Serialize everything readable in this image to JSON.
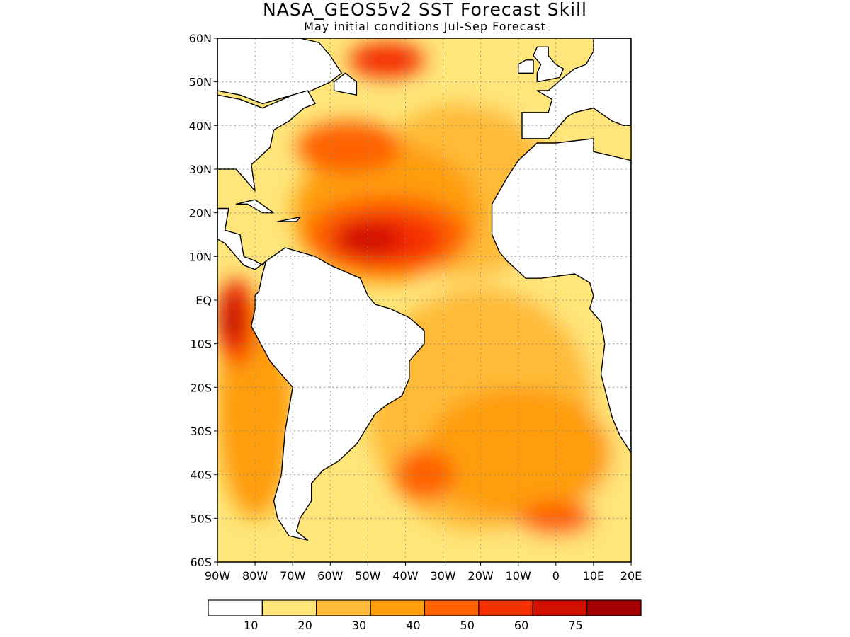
{
  "title": "NASA_GEOS5v2 SST Forecast Skill",
  "subtitle": "May initial conditions  Jul-Sep Forecast",
  "map": {
    "lon_range": [
      -90,
      20
    ],
    "lat_range": [
      -60,
      60
    ],
    "lat_ticks": [
      {
        "value": 60,
        "label": "60N"
      },
      {
        "value": 50,
        "label": "50N"
      },
      {
        "value": 40,
        "label": "40N"
      },
      {
        "value": 30,
        "label": "30N"
      },
      {
        "value": 20,
        "label": "20N"
      },
      {
        "value": 10,
        "label": "10N"
      },
      {
        "value": 0,
        "label": "EQ"
      },
      {
        "value": -10,
        "label": "10S"
      },
      {
        "value": -20,
        "label": "20S"
      },
      {
        "value": -30,
        "label": "30S"
      },
      {
        "value": -40,
        "label": "40S"
      },
      {
        "value": -50,
        "label": "50S"
      },
      {
        "value": -60,
        "label": "60S"
      }
    ],
    "lon_ticks": [
      {
        "value": -90,
        "label": "90W"
      },
      {
        "value": -80,
        "label": "80W"
      },
      {
        "value": -70,
        "label": "70W"
      },
      {
        "value": -60,
        "label": "60W"
      },
      {
        "value": -50,
        "label": "50W"
      },
      {
        "value": -40,
        "label": "40W"
      },
      {
        "value": -30,
        "label": "30W"
      },
      {
        "value": -20,
        "label": "20W"
      },
      {
        "value": -10,
        "label": "10W"
      },
      {
        "value": 0,
        "label": "0"
      },
      {
        "value": 10,
        "label": "10E"
      },
      {
        "value": 20,
        "label": "20E"
      }
    ],
    "land_color": "#ffffff",
    "coastline_color": "#000000",
    "grid": "dotted"
  },
  "colorbar": {
    "colors": [
      "#ffffff",
      "#ffe57a",
      "#ffbb38",
      "#ff9d0a",
      "#ff6200",
      "#f52e00",
      "#d21000",
      "#a20000"
    ],
    "labels": [
      "10",
      "20",
      "30",
      "40",
      "50",
      "60",
      "75"
    ]
  },
  "skill_regions": [
    {
      "level": 1,
      "lon": -5,
      "lat": 0,
      "rx": 30,
      "ry": 62
    },
    {
      "level": 2,
      "lon": -25,
      "lat": 25,
      "rx": 25,
      "ry": 20
    },
    {
      "level": 2,
      "lon": -20,
      "lat": -25,
      "rx": 30,
      "ry": 28
    },
    {
      "level": 3,
      "lon": -45,
      "lat": 20,
      "rx": 25,
      "ry": 16
    },
    {
      "level": 3,
      "lon": -10,
      "lat": -35,
      "rx": 25,
      "ry": 15
    },
    {
      "level": 3,
      "lon": -80,
      "lat": -25,
      "rx": 10,
      "ry": 25
    },
    {
      "level": 4,
      "lon": -45,
      "lat": 15,
      "rx": 22,
      "ry": 9
    },
    {
      "level": 4,
      "lon": -55,
      "lat": 35,
      "rx": 14,
      "ry": 6
    },
    {
      "level": 4,
      "lon": -35,
      "lat": -40,
      "rx": 8,
      "ry": 6
    },
    {
      "level": 4,
      "lon": 0,
      "lat": -50,
      "rx": 10,
      "ry": 4
    },
    {
      "level": 5,
      "lon": -45,
      "lat": 14,
      "rx": 15,
      "ry": 6
    },
    {
      "level": 5,
      "lon": -85,
      "lat": -5,
      "rx": 5,
      "ry": 10
    },
    {
      "level": 5,
      "lon": -45,
      "lat": 55,
      "rx": 10,
      "ry": 4
    },
    {
      "level": 6,
      "lon": -50,
      "lat": 14,
      "rx": 9,
      "ry": 4
    },
    {
      "level": 6,
      "lon": -86,
      "lat": -3,
      "rx": 3,
      "ry": 6
    },
    {
      "level": 7,
      "lon": -86,
      "lat": -6,
      "rx": 2,
      "ry": 3
    }
  ],
  "land_outlines": [
    {
      "name": "north-america",
      "points": [
        [
          -90,
          48
        ],
        [
          -84,
          47
        ],
        [
          -78,
          45
        ],
        [
          -70,
          47
        ],
        [
          -65,
          48
        ],
        [
          -60,
          50
        ],
        [
          -57,
          52
        ],
        [
          -60,
          56
        ],
        [
          -63,
          59
        ],
        [
          -68,
          60
        ],
        [
          -90,
          60
        ]
      ]
    },
    {
      "name": "us-east-coast",
      "points": [
        [
          -90,
          30
        ],
        [
          -85,
          30
        ],
        [
          -82,
          27
        ],
        [
          -80,
          25
        ],
        [
          -81,
          31
        ],
        [
          -76,
          35
        ],
        [
          -75,
          39
        ],
        [
          -71,
          41
        ],
        [
          -67,
          44
        ],
        [
          -64,
          45
        ],
        [
          -66,
          48
        ],
        [
          -70,
          47
        ],
        [
          -78,
          44
        ],
        [
          -84,
          46
        ],
        [
          -90,
          47
        ]
      ]
    },
    {
      "name": "central-america",
      "points": [
        [
          -90,
          30
        ],
        [
          -90,
          21
        ],
        [
          -87,
          21
        ],
        [
          -88,
          16
        ],
        [
          -84,
          15
        ],
        [
          -83,
          10
        ],
        [
          -80,
          9
        ],
        [
          -78,
          8
        ],
        [
          -77,
          9
        ],
        [
          -80,
          7
        ],
        [
          -83,
          8
        ],
        [
          -86,
          11
        ],
        [
          -88,
          13
        ],
        [
          -90,
          14
        ]
      ]
    },
    {
      "name": "south-america",
      "points": [
        [
          -77,
          9
        ],
        [
          -72,
          12
        ],
        [
          -64,
          10
        ],
        [
          -60,
          8
        ],
        [
          -52,
          5
        ],
        [
          -50,
          1
        ],
        [
          -48,
          -1
        ],
        [
          -44,
          -2
        ],
        [
          -39,
          -4
        ],
        [
          -35,
          -7
        ],
        [
          -35,
          -10
        ],
        [
          -39,
          -14
        ],
        [
          -39,
          -18
        ],
        [
          -41,
          -22
        ],
        [
          -45,
          -24
        ],
        [
          -48,
          -26
        ],
        [
          -53,
          -33
        ],
        [
          -58,
          -37
        ],
        [
          -62,
          -39
        ],
        [
          -65,
          -42
        ],
        [
          -65,
          -46
        ],
        [
          -68,
          -50
        ],
        [
          -69,
          -53
        ],
        [
          -66,
          -55
        ],
        [
          -71,
          -54
        ],
        [
          -74,
          -50
        ],
        [
          -75,
          -46
        ],
        [
          -73,
          -40
        ],
        [
          -72,
          -30
        ],
        [
          -70,
          -20
        ],
        [
          -76,
          -14
        ],
        [
          -81,
          -6
        ],
        [
          -80,
          -2
        ],
        [
          -80,
          1
        ],
        [
          -79,
          2
        ],
        [
          -78,
          6
        ],
        [
          -77,
          9
        ]
      ]
    },
    {
      "name": "africa",
      "points": [
        [
          20,
          32
        ],
        [
          10,
          34
        ],
        [
          10,
          37
        ],
        [
          0,
          36
        ],
        [
          -5,
          36
        ],
        [
          -10,
          32
        ],
        [
          -13,
          28
        ],
        [
          -17,
          22
        ],
        [
          -17,
          15
        ],
        [
          -15,
          11
        ],
        [
          -13,
          9
        ],
        [
          -8,
          5
        ],
        [
          -4,
          5
        ],
        [
          5,
          6
        ],
        [
          9,
          4
        ],
        [
          10,
          1
        ],
        [
          9,
          -2
        ],
        [
          12,
          -5
        ],
        [
          13,
          -10
        ],
        [
          12,
          -17
        ],
        [
          15,
          -27
        ],
        [
          17,
          -31
        ],
        [
          20,
          -35
        ]
      ]
    },
    {
      "name": "europe",
      "points": [
        [
          -9,
          43
        ],
        [
          -9,
          37
        ],
        [
          -6,
          37
        ],
        [
          -2,
          37
        ],
        [
          0,
          39
        ],
        [
          3,
          42
        ],
        [
          5,
          43
        ],
        [
          10,
          44
        ],
        [
          15,
          41
        ],
        [
          18,
          40
        ],
        [
          20,
          40
        ],
        [
          20,
          60
        ],
        [
          10,
          60
        ],
        [
          10,
          57
        ],
        [
          8,
          54
        ],
        [
          5,
          53
        ],
        [
          2,
          51
        ],
        [
          -2,
          48
        ],
        [
          -5,
          48
        ],
        [
          -1,
          46
        ],
        [
          -2,
          43
        ],
        [
          -9,
          43
        ]
      ]
    },
    {
      "name": "great-britain",
      "points": [
        [
          -5,
          50
        ],
        [
          1,
          51
        ],
        [
          2,
          53
        ],
        [
          0,
          54
        ],
        [
          -2,
          56
        ],
        [
          -2,
          58
        ],
        [
          -5,
          58
        ],
        [
          -6,
          56
        ],
        [
          -4,
          54
        ],
        [
          -5,
          52
        ]
      ]
    },
    {
      "name": "ireland",
      "points": [
        [
          -10,
          52
        ],
        [
          -6,
          52
        ],
        [
          -6,
          55
        ],
        [
          -8,
          55
        ],
        [
          -10,
          54
        ]
      ]
    },
    {
      "name": "cuba",
      "points": [
        [
          -85,
          22
        ],
        [
          -80,
          23
        ],
        [
          -75,
          20
        ],
        [
          -78,
          20
        ],
        [
          -82,
          22
        ]
      ]
    },
    {
      "name": "hispaniola",
      "points": [
        [
          -74,
          18
        ],
        [
          -68,
          19
        ],
        [
          -69,
          18
        ],
        [
          -72,
          18
        ]
      ]
    },
    {
      "name": "newfoundland",
      "points": [
        [
          -59,
          48
        ],
        [
          -53,
          47
        ],
        [
          -53,
          50
        ],
        [
          -56,
          52
        ],
        [
          -59,
          50
        ]
      ]
    }
  ]
}
